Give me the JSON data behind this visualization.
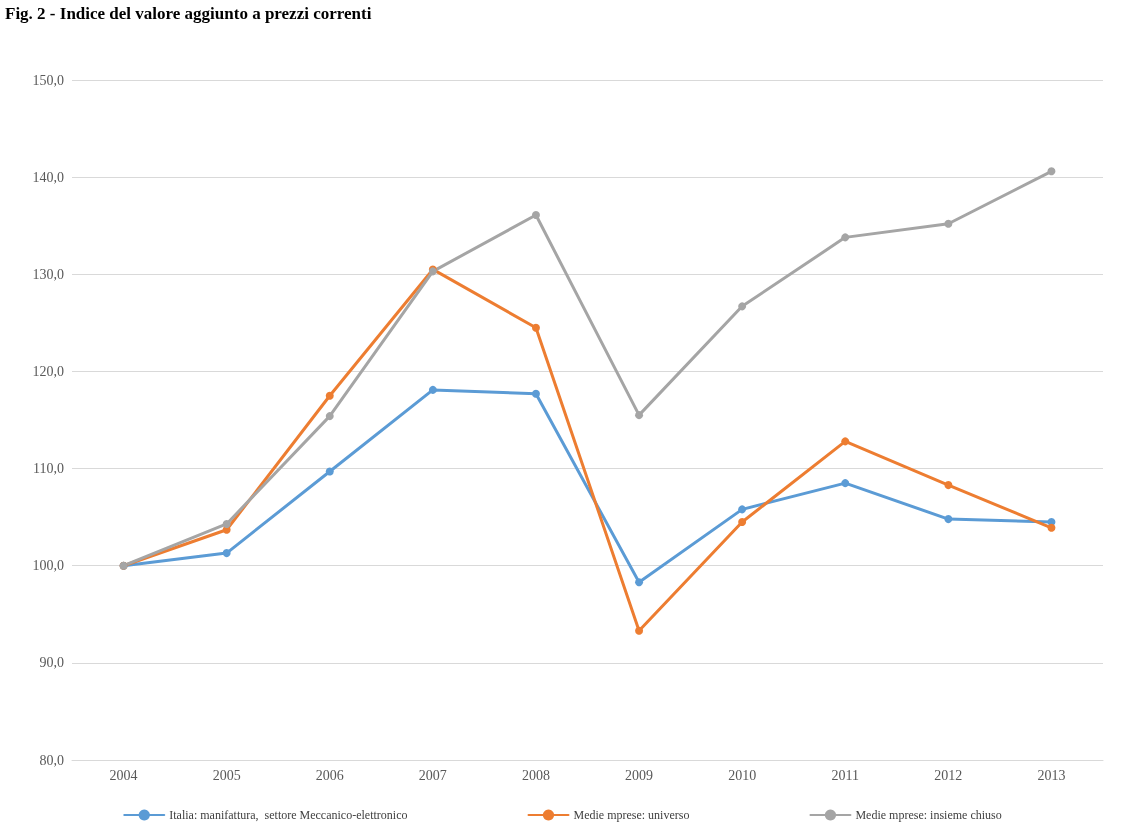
{
  "chart_data": {
    "type": "line",
    "title": "Fig. 2 - Indice del valore aggiunto a prezzi correnti",
    "categories": [
      "2004",
      "2005",
      "2006",
      "2007",
      "2008",
      "2009",
      "2010",
      "2011",
      "2012",
      "2013"
    ],
    "series": [
      {
        "name": "Italia: manifattura,  settore Meccanico-elettronico",
        "color": "#5b9bd5",
        "values": [
          100,
          101.3,
          109.7,
          118.1,
          117.7,
          98.3,
          105.8,
          108.5,
          104.8,
          104.5
        ]
      },
      {
        "name": "Medie mprese: universo",
        "color": "#ed7d31",
        "values": [
          100,
          103.7,
          117.5,
          130.5,
          124.5,
          93.3,
          104.5,
          112.8,
          108.3,
          103.9
        ]
      },
      {
        "name": "Medie mprese: insieme chiuso",
        "color": "#a5a5a5",
        "values": [
          100,
          104.3,
          115.4,
          130.3,
          136.1,
          115.5,
          126.7,
          133.8,
          135.2,
          140.6
        ]
      }
    ],
    "ylim": [
      80,
      150
    ],
    "yticks": [
      {
        "value": 80,
        "label": "80,0"
      },
      {
        "value": 90,
        "label": "90,0"
      },
      {
        "value": 100,
        "label": "100,0"
      },
      {
        "value": 110,
        "label": "110,0"
      },
      {
        "value": 120,
        "label": "120,0"
      },
      {
        "value": 130,
        "label": "130,0"
      },
      {
        "value": 140,
        "label": "140,0"
      },
      {
        "value": 150,
        "label": "150,0"
      }
    ],
    "grid": "y",
    "legend": "bottom",
    "marker": "circle",
    "line_style": "solid"
  }
}
